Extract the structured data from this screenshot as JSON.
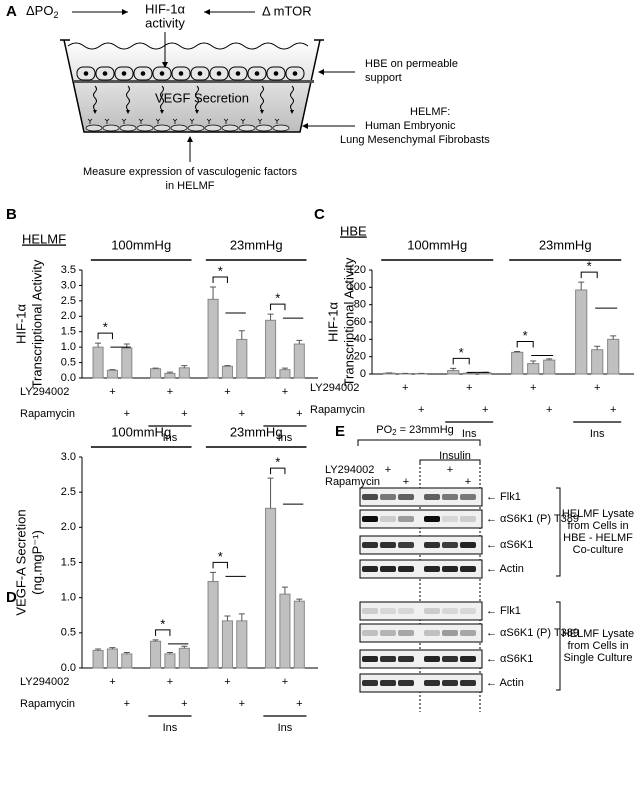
{
  "diagram": {
    "label": "A",
    "po2": "ΔPO",
    "po2_sub": "2",
    "hif": [
      "HIF-1α",
      "activity"
    ],
    "mtor": "Δ mTOR",
    "secretion": "VEGF Secretion",
    "hbe": [
      "HBE on permeable",
      "support"
    ],
    "helmf": [
      "HELMF:",
      "Human Embryonic",
      "Lung Mesenchymal Fibrobasts"
    ],
    "measure": [
      "Measure expression of vasculogenic factors",
      "in HELMF"
    ]
  },
  "chart_data": [
    {
      "type": "bar",
      "panel": "B",
      "subtitle": "HELMF",
      "ylabel": [
        "HIF-1α",
        "Transcriptional Activity"
      ],
      "categories": [
        null,
        null,
        null,
        null,
        null,
        null,
        null,
        null,
        null,
        null,
        null,
        null
      ],
      "values": [
        1.0,
        0.25,
        0.97,
        0.3,
        0.15,
        0.33,
        2.55,
        0.38,
        1.25,
        1.87,
        0.27,
        1.1
      ],
      "errors": [
        0.13,
        0.02,
        0.13,
        0.02,
        0.04,
        0.07,
        0.4,
        0.02,
        0.28,
        0.2,
        0.05,
        0.12
      ],
      "color": "#c0c0c0",
      "ylim": [
        0,
        3.5
      ],
      "yticks": [
        {
          "value": 0,
          "label": "0.0"
        },
        {
          "value": 0.5,
          "label": "0.5"
        },
        {
          "value": 1,
          "label": "1.0"
        },
        {
          "value": 1.5,
          "label": "1.5"
        },
        {
          "value": 2,
          "label": "2.0"
        },
        {
          "value": 2.5,
          "label": "2.5"
        },
        {
          "value": 3,
          "label": "3.0"
        },
        {
          "value": 3.5,
          "label": "3.5"
        }
      ],
      "groups": [
        "100mmHg",
        "23mmHg"
      ],
      "ins_labels": [
        "Ins",
        "Ins"
      ],
      "rows": [
        "LY294002",
        "Rapamycin"
      ],
      "ly": [
        null,
        "+",
        null,
        null,
        "+",
        null,
        null,
        "+",
        null,
        null,
        "+",
        null
      ],
      "rap": [
        null,
        null,
        "+",
        null,
        null,
        "+",
        null,
        null,
        "+",
        null,
        null,
        "+"
      ],
      "annotations": [
        "*",
        "*",
        "*"
      ]
    },
    {
      "type": "bar",
      "panel": "C",
      "subtitle": "HBE",
      "ylabel": [
        "HIF-1α",
        "Transcriptional Activity"
      ],
      "categories": [
        null,
        null,
        null,
        null,
        null,
        null,
        null,
        null,
        null,
        null,
        null,
        null
      ],
      "values": [
        1,
        0.5,
        0.5,
        4,
        1,
        1.5,
        25,
        12,
        16,
        97,
        28,
        40
      ],
      "errors": [
        0.3,
        0.2,
        0.2,
        2.5,
        0.5,
        0.5,
        1,
        3,
        1.5,
        9,
        4,
        4
      ],
      "color": "#c0c0c0",
      "ylim": [
        0,
        120
      ],
      "yticks": [
        0,
        20,
        40,
        60,
        80,
        100,
        120
      ],
      "groups": [
        "100mmHg",
        "23mmHg"
      ],
      "ins_labels": [
        "Ins",
        "Ins"
      ],
      "rows": [
        "LY294002",
        "Rapamycin"
      ],
      "ly": [
        null,
        "+",
        null,
        null,
        "+",
        null,
        null,
        "+",
        null,
        null,
        "+",
        null
      ],
      "rap": [
        null,
        null,
        "+",
        null,
        null,
        "+",
        null,
        null,
        "+",
        null,
        null,
        "+"
      ],
      "annotations": [
        "*",
        "*",
        "*"
      ]
    },
    {
      "type": "bar",
      "panel": "D",
      "ylabel": [
        "VEGF-A Secretion",
        "(ng.mgP⁻¹)"
      ],
      "categories": [
        null,
        null,
        null,
        null,
        null,
        null,
        null,
        null,
        null,
        null,
        null,
        null
      ],
      "values": [
        0.25,
        0.27,
        0.2,
        0.38,
        0.2,
        0.28,
        1.23,
        0.67,
        0.67,
        2.27,
        1.05,
        0.95
      ],
      "errors": [
        0.02,
        0.02,
        0.02,
        0.02,
        0.02,
        0.03,
        0.13,
        0.07,
        0.1,
        0.43,
        0.1,
        0.03
      ],
      "color": "#c0c0c0",
      "ylim": [
        0,
        3
      ],
      "yticks": [
        {
          "value": 0,
          "label": "0.0"
        },
        {
          "value": 0.5,
          "label": "0.5"
        },
        {
          "value": 1,
          "label": "1.0"
        },
        {
          "value": 1.5,
          "label": "1.5"
        },
        {
          "value": 2,
          "label": "2.0"
        },
        {
          "value": 2.5,
          "label": "2.5"
        },
        {
          "value": 3,
          "label": "3.0"
        }
      ],
      "groups": [
        "100mmHg",
        "23mmHg"
      ],
      "ins_labels": [
        "Ins",
        "Ins"
      ],
      "rows": [
        "LY294002",
        "Rapamycin"
      ],
      "ly": [
        null,
        "+",
        null,
        null,
        "+",
        null,
        null,
        "+",
        null,
        null,
        "+",
        null
      ],
      "rap": [
        null,
        null,
        "+",
        null,
        null,
        "+",
        null,
        null,
        "+",
        null,
        null,
        "+"
      ],
      "annotations": [
        "*",
        "*",
        "*"
      ]
    }
  ],
  "blot": {
    "label": "E",
    "po2": "PO",
    "po2_sub": "2",
    "po2_rest": " = 23mmHg",
    "insulin": "Insulin",
    "rows": [
      "LY294002",
      "Rapamycin"
    ],
    "ly": [
      null,
      "+",
      null,
      null,
      "+",
      null
    ],
    "rap": [
      null,
      null,
      "+",
      null,
      null,
      "+"
    ],
    "bands": [
      "← Flk1",
      "← αS6K1 (P) T389",
      "← αS6K1",
      "← Actin",
      "← Flk1",
      "← αS6K1 (P) T389",
      "← αS6K1",
      "← Actin"
    ],
    "groups": [
      [
        "HELMF Lysate",
        "from Cells in",
        "HBE - HELMF",
        "Co-culture"
      ],
      [
        "HELMF Lysate",
        "from Cells in",
        "Single Culture"
      ]
    ]
  }
}
